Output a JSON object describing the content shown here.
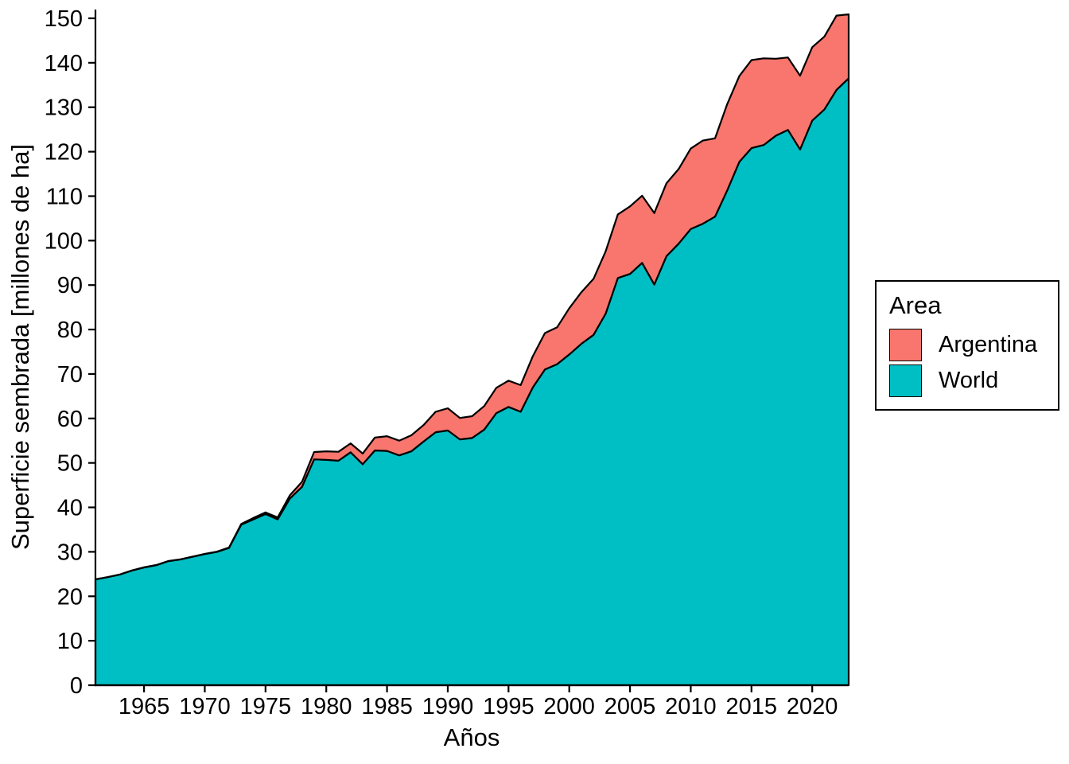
{
  "chart_data": {
    "type": "area",
    "stacked": true,
    "title": "",
    "xlabel": "Años",
    "ylabel": "Superficie sembrada [millones de ha]",
    "xlim": [
      1961,
      2023
    ],
    "ylim": [
      0,
      150
    ],
    "grid": false,
    "background_color": "#ffffff",
    "outline_color": "#000000",
    "axis_color": "#000000",
    "x_ticks": [
      1965,
      1970,
      1975,
      1980,
      1985,
      1990,
      1995,
      2000,
      2005,
      2010,
      2015,
      2020
    ],
    "y_ticks": [
      0,
      10,
      20,
      30,
      40,
      50,
      60,
      70,
      80,
      90,
      100,
      110,
      120,
      130,
      140,
      150
    ],
    "x": [
      1961,
      1962,
      1963,
      1964,
      1965,
      1966,
      1967,
      1968,
      1969,
      1970,
      1971,
      1972,
      1973,
      1974,
      1975,
      1976,
      1977,
      1978,
      1979,
      1980,
      1981,
      1982,
      1983,
      1984,
      1985,
      1986,
      1987,
      1988,
      1989,
      1990,
      1991,
      1992,
      1993,
      1994,
      1995,
      1996,
      1997,
      1998,
      1999,
      2000,
      2001,
      2002,
      2003,
      2004,
      2005,
      2006,
      2007,
      2008,
      2009,
      2010,
      2011,
      2012,
      2013,
      2014,
      2015,
      2016,
      2017,
      2018,
      2019,
      2020,
      2021,
      2022,
      2023
    ],
    "series_bottom_to_top": [
      {
        "name": "World",
        "color": "#00BFC4",
        "values": [
          23.8,
          24.3,
          24.9,
          25.8,
          26.5,
          27.0,
          27.9,
          28.3,
          28.9,
          29.5,
          30.0,
          30.9,
          36.1,
          37.3,
          38.5,
          37.3,
          42.0,
          44.6,
          50.8,
          50.7,
          50.5,
          52.4,
          49.7,
          52.8,
          52.7,
          51.7,
          52.6,
          54.8,
          56.9,
          57.3,
          55.3,
          55.6,
          57.5,
          61.2,
          62.6,
          61.5,
          67.0,
          71.0,
          72.2,
          74.4,
          76.8,
          78.8,
          83.6,
          91.6,
          92.5,
          95.0,
          90.1,
          96.5,
          99.3,
          102.6,
          103.8,
          105.4,
          111.3,
          117.7,
          120.8,
          121.5,
          123.6,
          124.9,
          120.5,
          127.0,
          129.5,
          133.9,
          136.5
        ]
      },
      {
        "name": "Argentina",
        "color": "#F8766D",
        "values": [
          0.0,
          0.0,
          0.0,
          0.01,
          0.02,
          0.02,
          0.02,
          0.02,
          0.03,
          0.03,
          0.04,
          0.08,
          0.16,
          0.33,
          0.36,
          0.44,
          0.71,
          1.15,
          1.65,
          1.9,
          2.0,
          2.0,
          2.4,
          2.9,
          3.3,
          3.3,
          3.6,
          3.7,
          4.6,
          5.0,
          4.8,
          4.9,
          5.3,
          5.7,
          5.9,
          6.0,
          7.0,
          8.2,
          8.3,
          10.4,
          11.6,
          12.6,
          14.0,
          14.3,
          15.2,
          15.1,
          16.1,
          16.4,
          16.8,
          18.1,
          18.7,
          17.6,
          19.4,
          19.3,
          19.8,
          19.5,
          17.3,
          16.3,
          16.6,
          16.5,
          16.4,
          16.7,
          14.4
        ]
      }
    ],
    "legend": {
      "title": "Area",
      "position": "right",
      "items": [
        {
          "label": "Argentina",
          "color": "#F8766D"
        },
        {
          "label": "World",
          "color": "#00BFC4"
        }
      ]
    }
  }
}
